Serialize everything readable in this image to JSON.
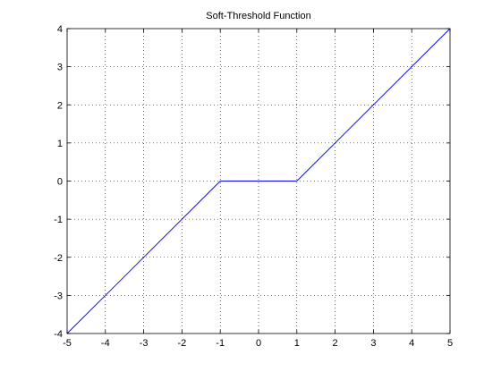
{
  "chart_data": {
    "type": "line",
    "title": "Soft-Threshold Function",
    "xlabel": "",
    "ylabel": "",
    "xlim": [
      -5,
      5
    ],
    "ylim": [
      -4,
      4
    ],
    "x_ticks": [
      -5,
      -4,
      -3,
      -2,
      -1,
      0,
      1,
      2,
      3,
      4,
      5
    ],
    "y_ticks": [
      -4,
      -3,
      -2,
      -1,
      0,
      1,
      2,
      3,
      4
    ],
    "x_tick_labels": [
      "-5",
      "-4",
      "-3",
      "-2",
      "-1",
      "0",
      "1",
      "2",
      "3",
      "4",
      "5"
    ],
    "y_tick_labels": [
      "-4",
      "-3",
      "-2",
      "-1",
      "0",
      "1",
      "2",
      "3",
      "4"
    ],
    "grid": true,
    "grid_style": "dotted",
    "series": [
      {
        "color": "#0000ff",
        "x": [
          -5,
          -1,
          1,
          5
        ],
        "y": [
          -4,
          0,
          0,
          4
        ]
      }
    ]
  }
}
